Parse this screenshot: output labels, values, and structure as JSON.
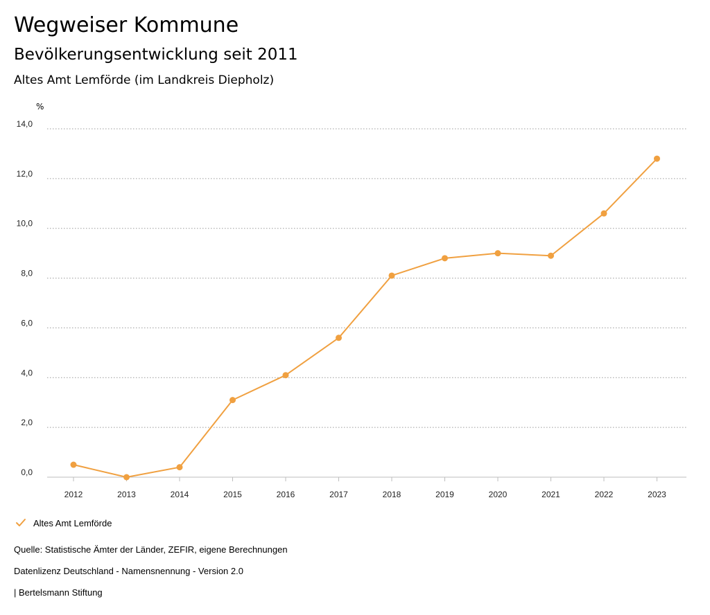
{
  "header": {
    "title": "Wegweiser Kommune",
    "subtitle": "Bevölkerungsentwicklung seit 2011",
    "region": "Altes Amt Lemförde (im Landkreis Diepholz)"
  },
  "chart_data": {
    "type": "line",
    "unit_label": "%",
    "x": [
      "2012",
      "2013",
      "2014",
      "2015",
      "2016",
      "2017",
      "2018",
      "2019",
      "2020",
      "2021",
      "2022",
      "2023"
    ],
    "series": [
      {
        "name": "Altes Amt Lemförde",
        "color": "#F0A040",
        "values": [
          0.5,
          0.0,
          0.4,
          3.1,
          4.1,
          5.6,
          8.1,
          8.8,
          9.0,
          8.9,
          10.6,
          12.8
        ]
      }
    ],
    "yticks": [
      "0,0",
      "2,0",
      "4,0",
      "6,0",
      "8,0",
      "10,0",
      "12,0",
      "14,0"
    ],
    "ylim": [
      0,
      14
    ],
    "grid": true,
    "legend": "bottom-left"
  },
  "footer": {
    "source": "Quelle: Statistische Ämter der Länder, ZEFIR, eigene Berechnungen",
    "license": "Datenlizenz Deutschland - Namensnennung - Version 2.0",
    "publisher": "| Bertelsmann Stiftung"
  }
}
